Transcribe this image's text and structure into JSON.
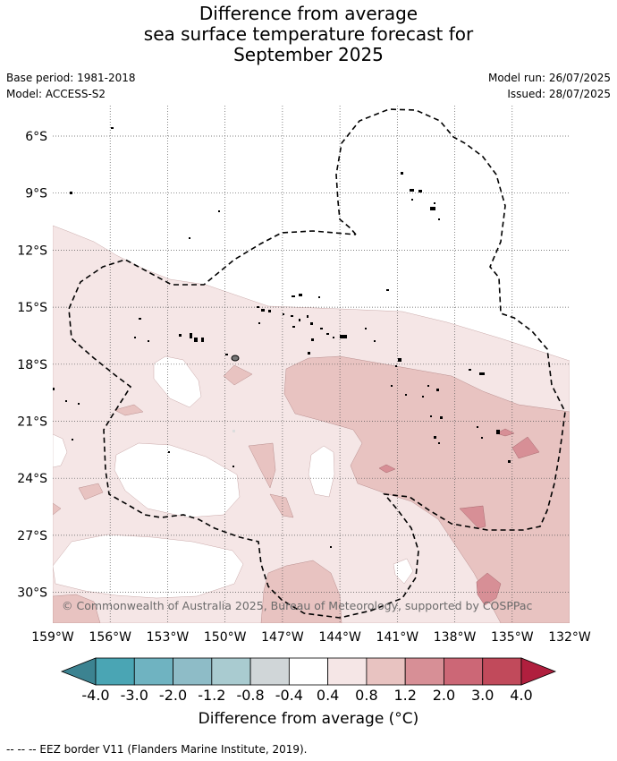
{
  "title": {
    "line1": "Difference from average",
    "line2": "sea surface temperature forecast for",
    "line3": "September 2025"
  },
  "meta": {
    "base_period": "Base period: 1981-2018",
    "model": "Model: ACCESS-S2",
    "model_run": "Model run: 26/07/2025",
    "issued": "Issued: 28/07/2025"
  },
  "map": {
    "lon_ticks": [
      "159°W",
      "156°W",
      "153°W",
      "150°W",
      "147°W",
      "144°W",
      "141°W",
      "138°W",
      "135°W",
      "132°W"
    ],
    "lat_ticks": [
      "6°S",
      "9°S",
      "12°S",
      "15°S",
      "18°S",
      "21°S",
      "24°S",
      "27°S",
      "30°S"
    ],
    "copyright": "© Commonwealth of Australia 2025, Bureau of Meteorology, supported by COSPPac",
    "grid": true
  },
  "colorbar": {
    "labels": [
      "-4.0",
      "-3.0",
      "-2.0",
      "-1.2",
      "-0.8",
      "-0.4",
      "0.4",
      "0.8",
      "1.2",
      "2.0",
      "3.0",
      "4.0"
    ],
    "colors": [
      "#3c8391",
      "#4aa5b4",
      "#6fb3c1",
      "#8ebcc7",
      "#a9cbd0",
      "#d0d6d8",
      "#ffffff",
      "#f5e6e6",
      "#e8c3c1",
      "#d78f96",
      "#cc6776",
      "#c14a5b",
      "#b01f3e"
    ],
    "label": "Difference from average (°C)"
  },
  "legend": {
    "eez": "-- -- -- EEZ border V11 (Flanders Marine Institute, 2019)."
  },
  "categories_present": [
    "0.4 to 0.8",
    "0.8 to 1.2",
    "1.2 to 2.0"
  ]
}
